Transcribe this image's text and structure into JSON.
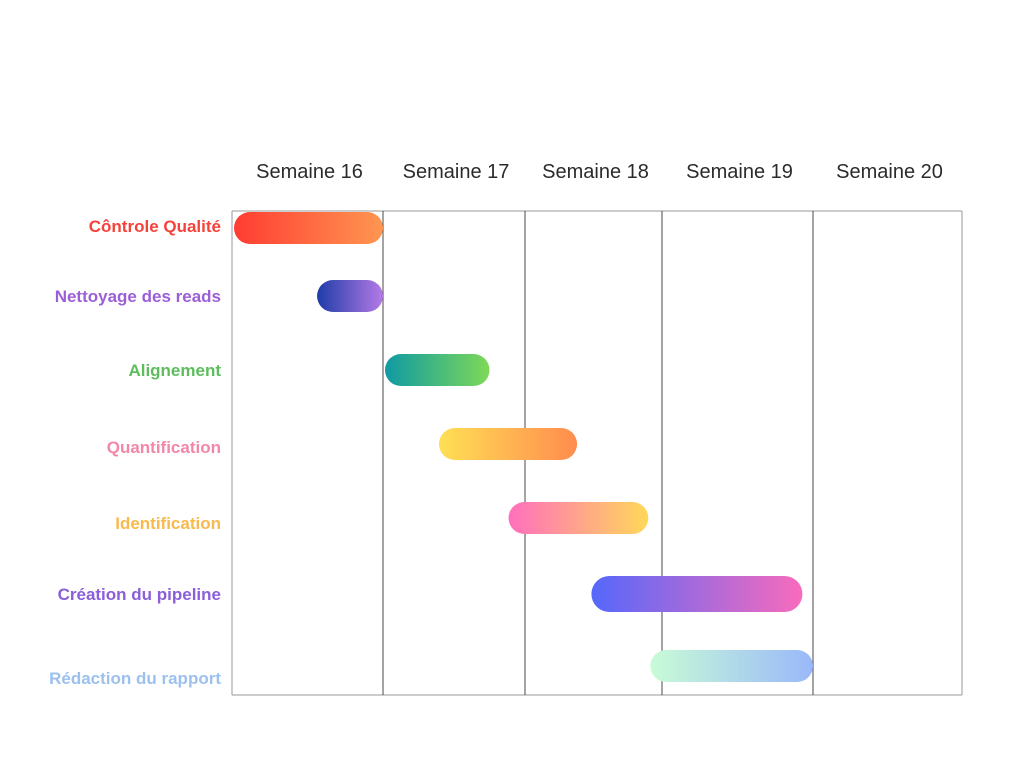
{
  "chart_data": {
    "type": "gantt",
    "title": "",
    "weeks": [
      "Semaine 16",
      "Semaine 17",
      "Semaine 18",
      "Semaine 19",
      "Semaine 20"
    ],
    "tasks": [
      {
        "name": "Côntrole Qualité",
        "start": 16.0,
        "end": 17.0,
        "label_color": "#f4433b",
        "colors": [
          "#ff3c32",
          "#ff9651"
        ]
      },
      {
        "name": "Nettoyage des reads",
        "start": 16.55,
        "end": 17.0,
        "label_color": "#9c5fd6",
        "colors": [
          "#1e3ca8",
          "#b57ae6"
        ]
      },
      {
        "name": "Alignement",
        "start": 17.0,
        "end": 17.75,
        "label_color": "#5dbd5d",
        "colors": [
          "#0f9aa3",
          "#7ed957"
        ]
      },
      {
        "name": "Quantification",
        "start": 17.38,
        "end": 18.38,
        "label_color": "#f287a8",
        "colors": [
          "#ffdf55",
          "#ff8c4e"
        ]
      },
      {
        "name": "Identification",
        "start": 17.87,
        "end": 18.9,
        "label_color": "#f9b94c",
        "colors": [
          "#ff6fbd",
          "#ffd85a"
        ]
      },
      {
        "name": "Création du pipeline",
        "start": 18.47,
        "end": 19.93,
        "label_color": "#8a5fd9",
        "colors": [
          "#5568fa",
          "#f86bbc"
        ]
      },
      {
        "name": "Rédaction du rapport",
        "start": 18.9,
        "end": 20.0,
        "label_color": "#9cc1ee",
        "colors": [
          "#c8fcd6",
          "#9ab8fa"
        ]
      }
    ]
  }
}
